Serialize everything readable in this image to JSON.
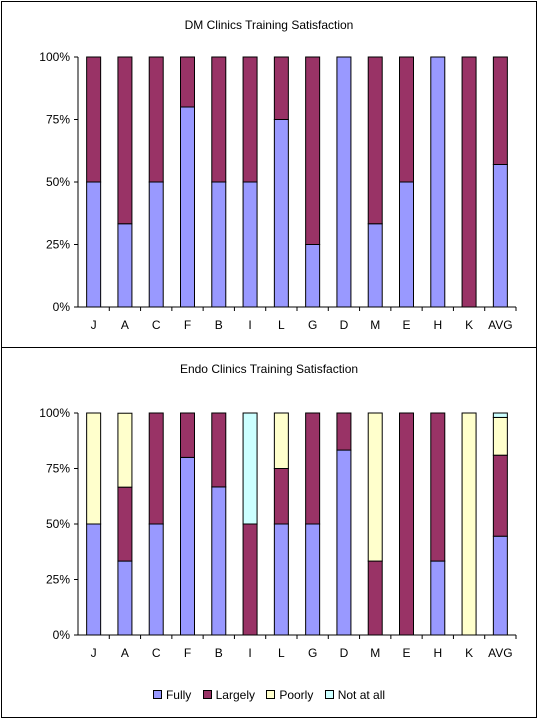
{
  "colors": {
    "Fully": "#9999ff",
    "Largely": "#993366",
    "Poorly": "#ffffcc",
    "Not at all": "#ccffff"
  },
  "chart_data": [
    {
      "type": "bar",
      "stacked": "percent",
      "title": "DM Clinics Training Satisfaction",
      "categories": [
        "J",
        "A",
        "C",
        "F",
        "B",
        "I",
        "L",
        "G",
        "D",
        "M",
        "E",
        "H",
        "K",
        "AVG"
      ],
      "yticks": [
        "0%",
        "25%",
        "50%",
        "75%",
        "100%"
      ],
      "ylim": [
        0,
        100
      ],
      "grid": false,
      "series": [
        {
          "name": "Fully",
          "values": [
            50,
            33.3,
            50,
            80,
            50,
            50,
            75,
            25,
            100,
            33.3,
            50,
            100,
            0,
            57
          ]
        },
        {
          "name": "Largely",
          "values": [
            50,
            66.7,
            50,
            20,
            50,
            50,
            25,
            75,
            0,
            66.7,
            50,
            0,
            100,
            43
          ]
        }
      ]
    },
    {
      "type": "bar",
      "stacked": "percent",
      "title": "Endo Clinics Training Satisfaction",
      "categories": [
        "J",
        "A",
        "C",
        "F",
        "B",
        "I",
        "L",
        "G",
        "D",
        "M",
        "E",
        "H",
        "K",
        "AVG"
      ],
      "yticks": [
        "0%",
        "25%",
        "50%",
        "75%",
        "100%"
      ],
      "ylim": [
        0,
        100
      ],
      "grid": false,
      "legend": "bottom",
      "series": [
        {
          "name": "Fully",
          "values": [
            50,
            33.3,
            50,
            80,
            66.7,
            0,
            50,
            50,
            83.3,
            0,
            0,
            33.3,
            0,
            44.5
          ]
        },
        {
          "name": "Largely",
          "values": [
            0,
            33.3,
            50,
            20,
            33.3,
            50,
            25,
            50,
            16.7,
            33.3,
            100,
            66.7,
            0,
            36.5
          ]
        },
        {
          "name": "Poorly",
          "values": [
            50,
            33.3,
            0,
            0,
            0,
            0,
            25,
            0,
            0,
            66.7,
            0,
            0,
            100,
            17
          ]
        },
        {
          "name": "Not at all",
          "values": [
            0,
            0,
            0,
            0,
            0,
            50,
            0,
            0,
            0,
            0,
            0,
            0,
            0,
            2
          ]
        }
      ]
    }
  ]
}
